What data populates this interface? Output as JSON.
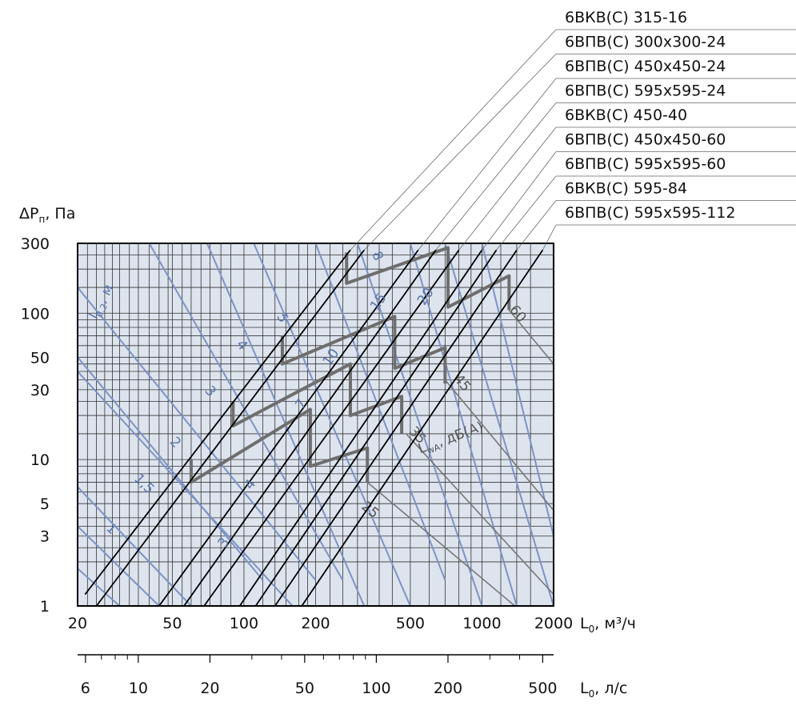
{
  "chart_data": {
    "type": "line",
    "xscale": "log",
    "yscale": "log",
    "xlim": [
      20,
      2000
    ],
    "ylim": [
      1,
      300
    ],
    "grid": true,
    "background": "#dde4ee",
    "colors": {
      "model_lines": "#000000",
      "throw_lines": "#7d93c4",
      "noise_lines": "#777777"
    },
    "y_axis_label": {
      "main": "ΔP",
      "sub": "п",
      "rest": ", Па"
    },
    "x_axis_label": {
      "main": "L",
      "sub": "0",
      "rest": ", м³/ч"
    },
    "x2_axis_label": {
      "main": "L",
      "sub": "0",
      "rest": ", л/с"
    },
    "x_ticks": [
      {
        "value": 20,
        "label": "20"
      },
      {
        "value": 50,
        "label": "50"
      },
      {
        "value": 100,
        "label": "100"
      },
      {
        "value": 200,
        "label": "200"
      },
      {
        "value": 500,
        "label": "500"
      },
      {
        "value": 1000,
        "label": "1000"
      },
      {
        "value": 2000,
        "label": "2000"
      }
    ],
    "y_ticks": [
      {
        "value": 1,
        "label": "1"
      },
      {
        "value": 3,
        "label": "3"
      },
      {
        "value": 5,
        "label": "5"
      },
      {
        "value": 10,
        "label": "10"
      },
      {
        "value": 30,
        "label": "30"
      },
      {
        "value": 50,
        "label": "50"
      },
      {
        "value": 100,
        "label": "100"
      },
      {
        "value": 300,
        "label": "300"
      }
    ],
    "x2_ticks": [
      {
        "value": 6,
        "label": "6"
      },
      {
        "value": 10,
        "label": "10"
      },
      {
        "value": 20,
        "label": "20"
      },
      {
        "value": 50,
        "label": "50"
      },
      {
        "value": 100,
        "label": "100"
      },
      {
        "value": 200,
        "label": "200"
      },
      {
        "value": 500,
        "label": "500"
      }
    ],
    "x2_minor": [
      7,
      8,
      9,
      30,
      40,
      60,
      70,
      80,
      90,
      300,
      400
    ],
    "x2_range": [
      5.56,
      555.6
    ],
    "vgrid": [
      22,
      24,
      26,
      28,
      30,
      33,
      36,
      40,
      44,
      48,
      55,
      60,
      66,
      72,
      80,
      88,
      120,
      135,
      150,
      170,
      185,
      230,
      260,
      300,
      330,
      370,
      420,
      600,
      700,
      800,
      900,
      1200,
      1400,
      1600
    ],
    "hgrid": [
      2,
      2.5,
      3.5,
      4,
      6,
      7,
      8,
      9,
      15,
      20,
      25,
      35,
      40,
      45,
      60,
      70,
      80,
      90,
      150,
      200,
      250
    ],
    "legend_title": "",
    "series": [
      {
        "name": "6ВКВ(С) 315-16",
        "x": [
          21.5,
          280
        ],
        "y": [
          1.2,
          270
        ]
      },
      {
        "name": "6ВПВ(С) 300х300-24",
        "x": [
          24,
          320
        ],
        "y": [
          1,
          270
        ]
      },
      {
        "name": "6ВПВ(С) 450х450-24",
        "x": [
          44,
          540
        ],
        "y": [
          1,
          270
        ]
      },
      {
        "name": "6ВПВ(С) 595х595-24",
        "x": [
          56,
          640
        ],
        "y": [
          1,
          270
        ]
      },
      {
        "name": "6ВКВ(С) 450-40",
        "x": [
          68,
          800
        ],
        "y": [
          1,
          270
        ]
      },
      {
        "name": "6ВПВ(С) 450х450-60",
        "x": [
          96,
          1000
        ],
        "y": [
          1,
          270
        ]
      },
      {
        "name": "6ВПВ(С) 595х595-60",
        "x": [
          112,
          1150
        ],
        "y": [
          1,
          270
        ]
      },
      {
        "name": "6ВКВ(С) 595-84",
        "x": [
          135,
          1400
        ],
        "y": [
          1,
          270
        ]
      },
      {
        "name": "6ВПВ(С) 595х595-112",
        "x": [
          175,
          1800
        ],
        "y": [
          1,
          270
        ]
      }
    ],
    "throw_lines": [
      {
        "label": "1",
        "x": [
          30,
          20
        ],
        "y": [
          1,
          1.8
        ],
        "label_at": [
          27,
          3.2
        ]
      },
      {
        "label": "1,5",
        "x": [
          44,
          20
        ],
        "y": [
          1,
          3.5
        ],
        "label_at": [
          37,
          6.5
        ]
      },
      {
        "label": "2",
        "x": [
          60,
          20
        ],
        "y": [
          1,
          6.5
        ],
        "label_at": [
          50,
          12.5
        ]
      },
      {
        "label": "3",
        "x": [
          120,
          20
        ],
        "y": [
          1.5,
          50
        ],
        "label_at": [
          70,
          28
        ]
      },
      {
        "label": "4",
        "x": [
          200,
          20
        ],
        "y": [
          1.5,
          150
        ],
        "label_at": [
          95,
          58
        ]
      },
      {
        "label": "5",
        "x": [
          260,
          40
        ],
        "y": [
          1.5,
          300
        ],
        "label_at": [
          140,
          90
        ]
      },
      {
        "label": "8",
        "x": [
          700,
          200
        ],
        "y": [
          1.5,
          300
        ],
        "label_at": [
          350,
          240
        ]
      },
      {
        "label": "",
        "x": [
          160,
          20
        ],
        "y": [
          1,
          40
        ]
      },
      {
        "label": "",
        "x": [
          320,
          70
        ],
        "y": [
          1,
          300
        ]
      },
      {
        "label": "",
        "x": [
          500,
          110
        ],
        "y": [
          1,
          300
        ]
      },
      {
        "label": "",
        "x": [
          1000,
          300
        ],
        "y": [
          1,
          300
        ]
      },
      {
        "label": "",
        "x": [
          1400,
          500
        ],
        "y": [
          1,
          300
        ]
      },
      {
        "label": "",
        "x": [
          2000,
          700
        ],
        "y": [
          1,
          300
        ]
      },
      {
        "label": "",
        "x": [
          2000,
          1000
        ],
        "y": [
          3,
          300
        ]
      }
    ],
    "throw_label_text": {
      "main": "l",
      "sub": "0,2",
      "rest": ", м",
      "at": [
        24,
        90
      ]
    },
    "noise_lines": [
      {
        "label": "25",
        "x": [
          330,
          2000
        ],
        "y": [
          7,
          0.6
        ],
        "label_at": [
          330,
          4.3
        ]
      },
      {
        "label": "35",
        "x": [
          480,
          2000
        ],
        "y": [
          15,
          1.2
        ],
        "label_at": [
          520,
          14
        ]
      },
      {
        "label": "45",
        "x": [
          700,
          2000
        ],
        "y": [
          35,
          4.5
        ],
        "label_at": [
          800,
          32
        ]
      },
      {
        "label": "60",
        "x": [
          1300,
          2000
        ],
        "y": [
          105,
          45
        ],
        "label_at": [
          1370,
          95
        ]
      }
    ],
    "noise_label_text": {
      "main": "L",
      "sub": "wA",
      "rest": ", дБ(А)",
      "at": [
        550,
        11
      ]
    },
    "bands": [
      {
        "name": "6ВКВ(С) 315-16",
        "low": [
          [
            60,
            7
          ],
          [
            190,
            9
          ],
          [
            330,
            12
          ],
          [
            330,
            7
          ]
        ],
        "high": [
          [
            60,
            9.5
          ],
          [
            190,
            22
          ],
          [
            190,
            9
          ]
        ]
      },
      {
        "name": "6ВПВ(С) 450х450-24",
        "low": [
          [
            90,
            17
          ],
          [
            280,
            45
          ],
          [
            280,
            20
          ]
        ],
        "high": [
          [
            90,
            23
          ],
          [
            280,
            45
          ]
        ]
      }
    ],
    "band_lines": [
      {
        "x": [
          60,
          190
        ],
        "y": [
          7,
          22
        ]
      },
      {
        "x": [
          190,
          330
        ],
        "y": [
          9,
          12
        ]
      },
      {
        "x": [
          90,
          280
        ],
        "y": [
          17,
          45
        ]
      },
      {
        "x": [
          280,
          460
        ],
        "y": [
          20,
          27
        ]
      },
      {
        "x": [
          145,
          430
        ],
        "y": [
          45,
          95
        ]
      },
      {
        "x": [
          430,
          700
        ],
        "y": [
          42,
          58
        ]
      },
      {
        "x": [
          270,
          720
        ],
        "y": [
          160,
          280
        ]
      },
      {
        "x": [
          720,
          1300
        ],
        "y": [
          110,
          180
        ]
      }
    ],
    "band_verticals": [
      {
        "x": 60,
        "y": [
          7,
          10
        ]
      },
      {
        "x": 90,
        "y": [
          17,
          25
        ]
      },
      {
        "x": 145,
        "y": [
          45,
          70
        ]
      },
      {
        "x": 190,
        "y": [
          9,
          22
        ]
      },
      {
        "x": 270,
        "y": [
          160,
          260
        ]
      },
      {
        "x": 280,
        "y": [
          20,
          45
        ]
      },
      {
        "x": 330,
        "y": [
          7,
          12
        ]
      },
      {
        "x": 430,
        "y": [
          42,
          95
        ]
      },
      {
        "x": 460,
        "y": [
          15,
          27
        ]
      },
      {
        "x": 700,
        "y": [
          33,
          58
        ]
      },
      {
        "x": 720,
        "y": [
          110,
          280
        ]
      },
      {
        "x": 1300,
        "y": [
          105,
          180
        ]
      }
    ],
    "inline_labels": [
      {
        "text": "7",
        "at": [
          180,
          23
        ]
      },
      {
        "text": "10",
        "at": [
          240,
          48
        ]
      },
      {
        "text": "15",
        "at": [
          380,
          115
        ]
      },
      {
        "text": "20",
        "at": [
          600,
          125
        ]
      },
      {
        "text": "4",
        "at": [
          110,
          6.5
        ]
      },
      {
        "text": "3",
        "at": [
          85,
          2.6
        ]
      }
    ]
  }
}
